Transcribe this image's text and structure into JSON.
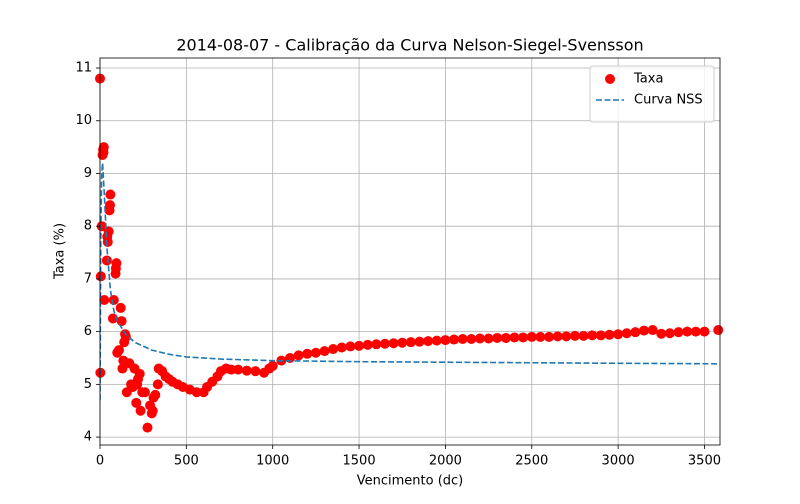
{
  "chart_data": {
    "type": "scatter",
    "title": "2014-08-07 - Calibração da Curva Nelson-Siegel-Svensson",
    "x_label": "Vencimento (dc)",
    "y_label": "Taxa (%)",
    "xlim": [
      0,
      3590
    ],
    "ylim": [
      3.85,
      11.19
    ],
    "xticks": [
      0,
      500,
      1000,
      1500,
      2000,
      2500,
      3000,
      3500
    ],
    "yticks": [
      4,
      5,
      6,
      7,
      8,
      9,
      10,
      11
    ],
    "grid": true,
    "legend": "upper-right",
    "series": [
      {
        "name": "Taxa",
        "kind": "scatter",
        "color": "#ff0000",
        "x": [
          0,
          2,
          5,
          10,
          15,
          18,
          20,
          22,
          25,
          40,
          42,
          45,
          50,
          55,
          58,
          60,
          75,
          80,
          90,
          92,
          95,
          100,
          110,
          120,
          125,
          130,
          135,
          140,
          145,
          150,
          155,
          170,
          180,
          190,
          200,
          210,
          215,
          220,
          230,
          235,
          245,
          260,
          275,
          290,
          300,
          305,
          310,
          320,
          335,
          340,
          360,
          380,
          400,
          420,
          450,
          480,
          520,
          560,
          600,
          620,
          650,
          680,
          700,
          730,
          760,
          800,
          850,
          900,
          950,
          980,
          1000,
          1050,
          1100,
          1150,
          1200,
          1250,
          1300,
          1350,
          1400,
          1450,
          1500,
          1550,
          1600,
          1650,
          1700,
          1750,
          1800,
          1850,
          1900,
          1950,
          2000,
          2050,
          2100,
          2150,
          2200,
          2250,
          2300,
          2350,
          2400,
          2450,
          2500,
          2550,
          2600,
          2650,
          2700,
          2750,
          2800,
          2850,
          2900,
          2950,
          3000,
          3050,
          3100,
          3150,
          3200,
          3250,
          3300,
          3350,
          3400,
          3450,
          3500,
          3580
        ],
        "values": [
          10.8,
          5.22,
          7.05,
          8.0,
          9.35,
          9.45,
          9.4,
          9.5,
          6.6,
          7.35,
          7.8,
          7.7,
          7.9,
          8.3,
          8.4,
          8.6,
          6.25,
          6.6,
          7.1,
          7.2,
          7.3,
          5.6,
          5.65,
          6.45,
          6.2,
          5.3,
          5.45,
          5.8,
          5.95,
          5.9,
          4.85,
          5.4,
          5.0,
          4.95,
          5.3,
          4.65,
          5.0,
          5.1,
          5.2,
          4.5,
          4.85,
          4.85,
          4.18,
          4.6,
          4.45,
          4.5,
          4.75,
          4.8,
          5.0,
          5.3,
          5.25,
          5.15,
          5.1,
          5.05,
          5.0,
          4.95,
          4.9,
          4.85,
          4.85,
          4.95,
          5.05,
          5.15,
          5.25,
          5.3,
          5.28,
          5.28,
          5.26,
          5.25,
          5.22,
          5.3,
          5.35,
          5.45,
          5.5,
          5.55,
          5.58,
          5.6,
          5.63,
          5.67,
          5.7,
          5.72,
          5.73,
          5.75,
          5.76,
          5.77,
          5.78,
          5.79,
          5.8,
          5.81,
          5.82,
          5.83,
          5.84,
          5.85,
          5.86,
          5.86,
          5.87,
          5.87,
          5.88,
          5.88,
          5.89,
          5.89,
          5.9,
          5.9,
          5.9,
          5.91,
          5.91,
          5.92,
          5.92,
          5.93,
          5.93,
          5.94,
          5.95,
          5.97,
          5.99,
          6.02,
          6.03,
          5.96,
          5.97,
          5.99,
          6.0,
          6.0,
          6.0,
          6.03
        ]
      },
      {
        "name": "Curva NSS",
        "kind": "line",
        "color": "#1f77b4",
        "x": [
          0,
          5,
          10,
          15,
          25,
          40,
          60,
          80,
          100,
          150,
          200,
          300,
          400,
          500,
          700,
          1000,
          1500,
          2000,
          3000,
          3590
        ],
        "values": [
          4.7,
          8.0,
          9.0,
          9.2,
          8.6,
          7.6,
          6.8,
          6.4,
          6.2,
          5.95,
          5.8,
          5.65,
          5.57,
          5.52,
          5.48,
          5.45,
          5.43,
          5.42,
          5.4,
          5.39
        ]
      }
    ]
  }
}
